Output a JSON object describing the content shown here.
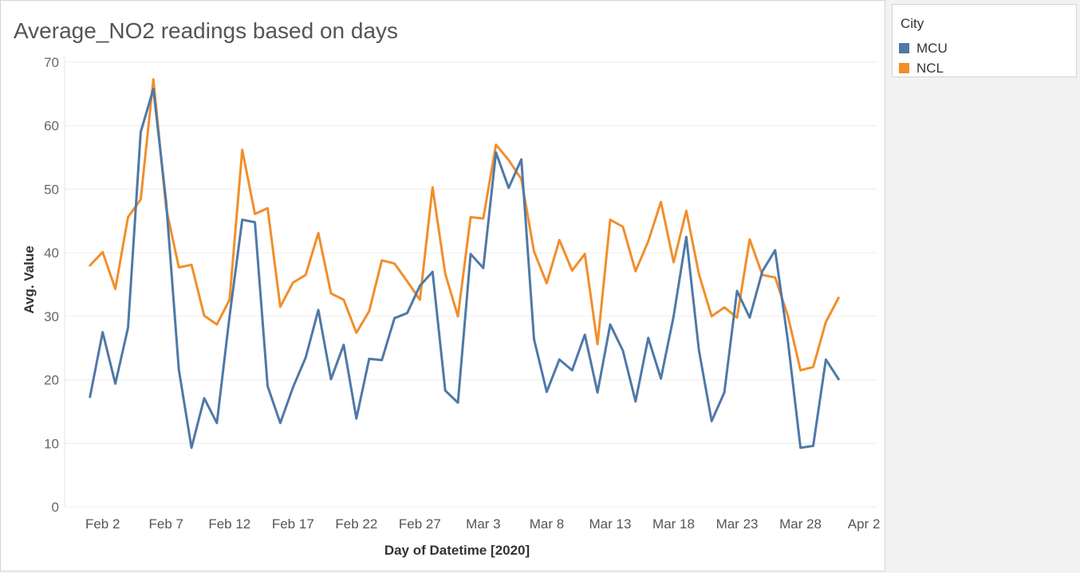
{
  "chart_data": {
    "type": "line",
    "title": "Average_NO2 readings based on days",
    "xlabel": "Day of Datetime [2020]",
    "ylabel": "Avg. Value",
    "ylim": [
      0,
      70
    ],
    "yticks": [
      0,
      10,
      20,
      30,
      40,
      50,
      60,
      70
    ],
    "xticks": [
      "Feb 2",
      "Feb 7",
      "Feb 12",
      "Feb 17",
      "Feb 22",
      "Feb 27",
      "Mar 3",
      "Mar 8",
      "Mar 13",
      "Mar 18",
      "Mar 23",
      "Mar 28",
      "Apr 2"
    ],
    "xlim": [
      "Jan 30",
      "Apr 3"
    ],
    "grid": true,
    "legend_position": "right",
    "x": [
      "Feb 1",
      "Feb 2",
      "Feb 3",
      "Feb 4",
      "Feb 5",
      "Feb 6",
      "Feb 7",
      "Feb 8",
      "Feb 9",
      "Feb 10",
      "Feb 11",
      "Feb 12",
      "Feb 13",
      "Feb 14",
      "Feb 15",
      "Feb 16",
      "Feb 17",
      "Feb 18",
      "Feb 19",
      "Feb 20",
      "Feb 21",
      "Feb 22",
      "Feb 23",
      "Feb 24",
      "Feb 25",
      "Feb 26",
      "Feb 27",
      "Feb 28",
      "Feb 29",
      "Mar 1",
      "Mar 2",
      "Mar 3",
      "Mar 4",
      "Mar 5",
      "Mar 6",
      "Mar 7",
      "Mar 8",
      "Mar 9",
      "Mar 10",
      "Mar 11",
      "Mar 12",
      "Mar 13",
      "Mar 14",
      "Mar 15",
      "Mar 16",
      "Mar 17",
      "Mar 18",
      "Mar 19",
      "Mar 20",
      "Mar 21",
      "Mar 22",
      "Mar 23",
      "Mar 24",
      "Mar 25",
      "Mar 26",
      "Mar 27",
      "Mar 28",
      "Mar 29",
      "Mar 30",
      "Mar 31"
    ],
    "series": [
      {
        "name": "MCU",
        "color": "#4e79a7",
        "values": [
          17.3,
          27.5,
          19.4,
          28.2,
          59.0,
          65.8,
          48.0,
          21.6,
          9.3,
          17.1,
          13.2,
          30.0,
          45.2,
          44.8,
          19.0,
          13.2,
          18.8,
          23.5,
          31.0,
          20.1,
          25.5,
          13.9,
          23.3,
          23.1,
          29.7,
          30.5,
          34.8,
          37.0,
          18.3,
          16.4,
          39.8,
          37.6,
          55.8,
          50.2,
          54.7,
          26.4,
          18.1,
          23.2,
          21.5,
          27.1,
          18.0,
          28.7,
          24.6,
          16.6,
          26.6,
          20.2,
          30.0,
          42.5,
          24.6,
          13.5,
          18.0,
          34.0,
          29.8,
          37.1,
          40.4,
          26.2,
          9.3,
          9.6,
          23.2,
          20.1
        ]
      },
      {
        "name": "NCL",
        "color": "#f28e2b",
        "values": [
          38.0,
          40.1,
          34.3,
          45.6,
          48.4,
          67.3,
          47.0,
          37.7,
          38.1,
          30.1,
          28.7,
          32.6,
          56.2,
          46.1,
          47.0,
          31.5,
          35.3,
          36.5,
          43.1,
          33.6,
          32.6,
          27.4,
          30.8,
          38.8,
          38.3,
          35.5,
          32.6,
          50.3,
          36.7,
          30.0,
          45.6,
          45.4,
          57.0,
          54.6,
          51.6,
          40.2,
          35.2,
          42.0,
          37.2,
          39.8,
          25.6,
          45.2,
          44.1,
          37.1,
          41.8,
          48.0,
          38.5,
          46.6,
          36.6,
          30.0,
          31.4,
          29.8,
          42.1,
          36.5,
          36.1,
          30.1,
          21.5,
          22.0,
          29.1,
          32.9
        ]
      }
    ]
  },
  "legend": {
    "title": "City"
  }
}
